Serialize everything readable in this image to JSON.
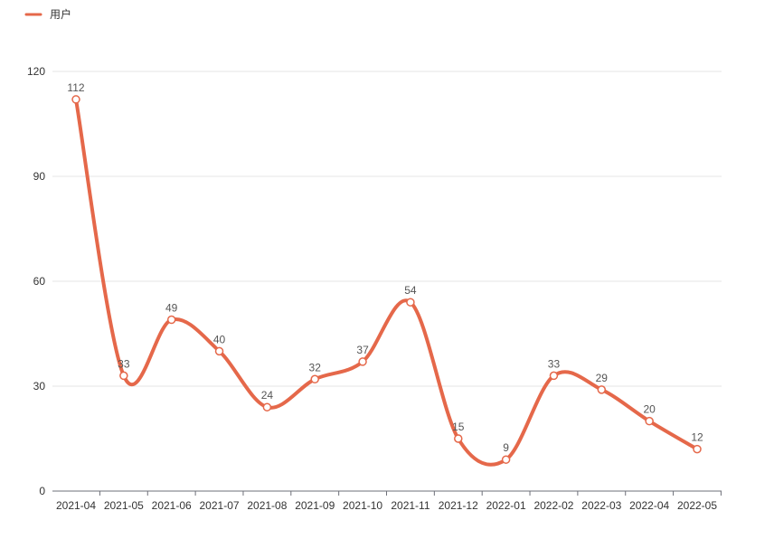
{
  "chart_data": {
    "type": "line",
    "smooth": true,
    "categories": [
      "2021-04",
      "2021-05",
      "2021-06",
      "2021-07",
      "2021-08",
      "2021-09",
      "2021-10",
      "2021-11",
      "2021-12",
      "2022-01",
      "2022-02",
      "2022-03",
      "2022-04",
      "2022-05"
    ],
    "series": [
      {
        "name": "用户",
        "values": [
          112,
          33,
          49,
          40,
          24,
          32,
          37,
          54,
          15,
          9,
          33,
          29,
          20,
          12
        ]
      }
    ],
    "ylim": [
      0,
      120
    ],
    "yticks": [
      0,
      30,
      60,
      90,
      120
    ],
    "grid": true,
    "legend": "top-left",
    "show_data_labels": true,
    "colors": {
      "series": "#e5684a",
      "grid": "#e6e6e6",
      "axis": "#6e7079",
      "point_fill": "#ffffff"
    }
  }
}
